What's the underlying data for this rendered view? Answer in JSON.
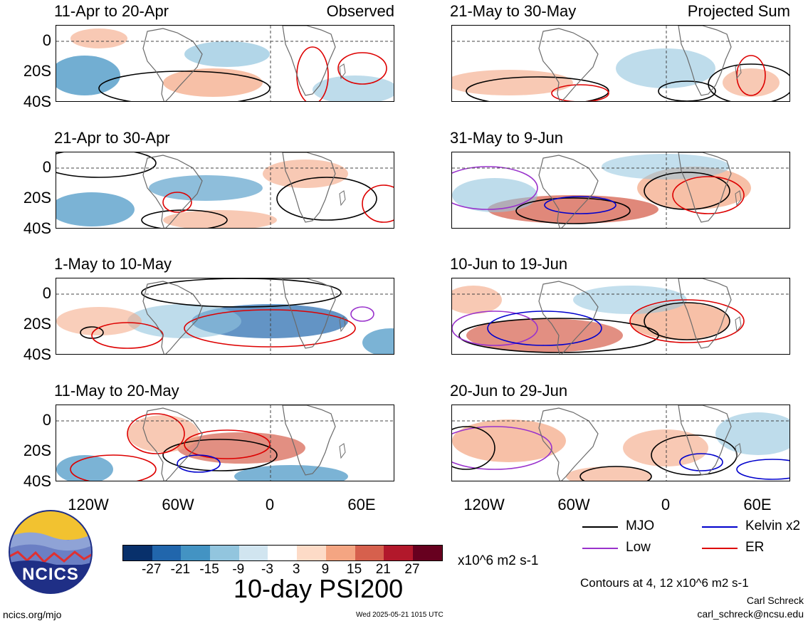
{
  "panels": [
    {
      "id": "p1",
      "date": "11-Apr to 20-Apr",
      "label": "Observed"
    },
    {
      "id": "p2",
      "date": "21-May to 30-May",
      "label": "Projected Sum"
    },
    {
      "id": "p3",
      "date": "21-Apr to 30-Apr",
      "label": ""
    },
    {
      "id": "p4",
      "date": "31-May to 9-Jun",
      "label": ""
    },
    {
      "id": "p5",
      "date": "1-May to 10-May",
      "label": ""
    },
    {
      "id": "p6",
      "date": "10-Jun to 19-Jun",
      "label": ""
    },
    {
      "id": "p7",
      "date": "11-May to 20-May",
      "label": ""
    },
    {
      "id": "p8",
      "date": "20-Jun to 29-Jun",
      "label": ""
    }
  ],
  "y_ticks": [
    "0",
    "20S",
    "40S"
  ],
  "x_ticks": [
    "120W",
    "60W",
    "0",
    "60E"
  ],
  "colorbar": {
    "unit": "x10^6 m2 s-1",
    "ticks": [
      "-27",
      "-21",
      "-15",
      "-9",
      "-3",
      "3",
      "9",
      "15",
      "21",
      "27"
    ],
    "colors": [
      "#08306b",
      "#2166ac",
      "#4393c3",
      "#92c5de",
      "#d1e5f0",
      "#ffffff",
      "#fddbc7",
      "#f4a582",
      "#d6604d",
      "#b2182b",
      "#67001f"
    ]
  },
  "main_title": "10-day PSI200",
  "legend": [
    {
      "name": "MJO",
      "color": "#000000"
    },
    {
      "name": "Kelvin x2",
      "color": "#0000cc"
    },
    {
      "name": "Low",
      "color": "#9932cc"
    },
    {
      "name": "ER",
      "color": "#dd0000"
    }
  ],
  "contour_note": "Contours at 4, 12 x10^6 m2 s-1",
  "author": "Carl Schreck",
  "email": "carl_schreck@ncsu.edu",
  "website": "ncics.org/mjo",
  "timestamp": "Wed 2025-05-21 1015 UTC",
  "logo_text": "NCICS"
}
